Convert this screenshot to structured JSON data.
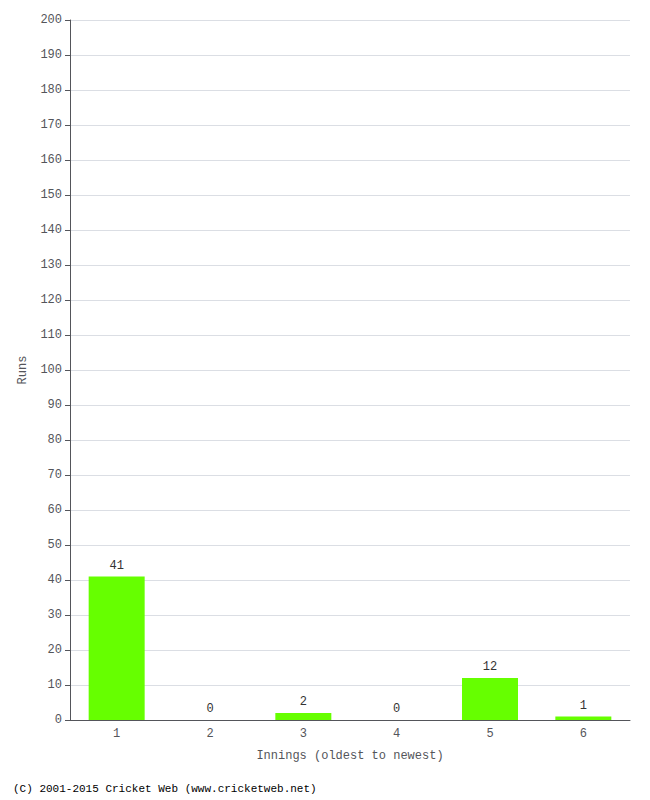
{
  "chart_data": {
    "type": "bar",
    "categories": [
      "1",
      "2",
      "3",
      "4",
      "5",
      "6"
    ],
    "values": [
      41,
      0,
      2,
      0,
      12,
      1
    ],
    "color": "#66ff00",
    "xlabel": "Innings (oldest to newest)",
    "ylabel": "Runs",
    "ylim": [
      0,
      200
    ],
    "yticks": [
      0,
      10,
      20,
      30,
      40,
      50,
      60,
      70,
      80,
      90,
      100,
      110,
      120,
      130,
      140,
      150,
      160,
      170,
      180,
      190,
      200
    ],
    "grid": true,
    "data_labels": true,
    "annotations": [
      "(C) 2001-2015 Cricket Web (www.cricketweb.net)"
    ]
  }
}
